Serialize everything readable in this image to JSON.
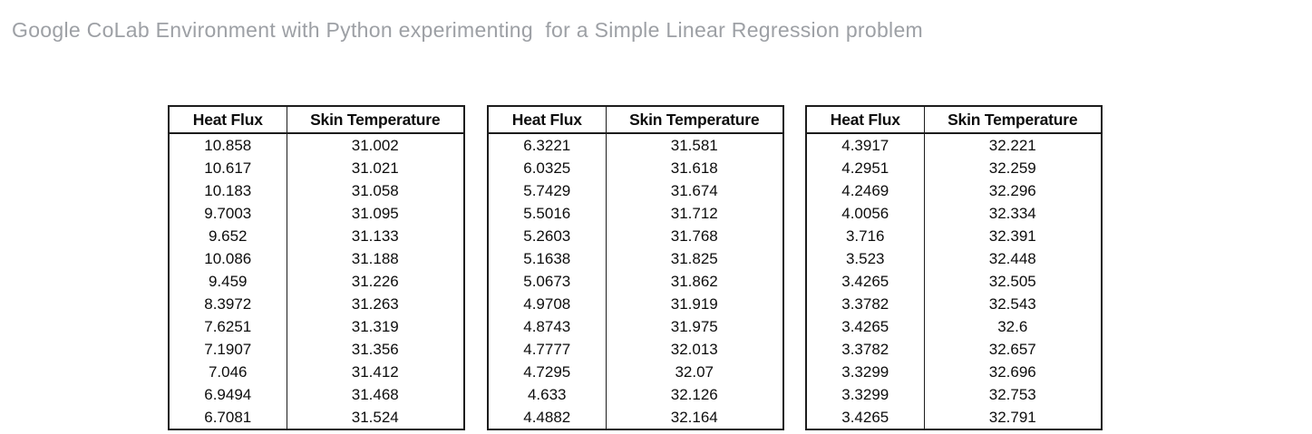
{
  "title": "Google CoLab Environment with Python experimenting  for a Simple Linear Regression problem",
  "colors": {
    "title_text": "#9da0a5",
    "table_border": "#1c1c1c",
    "table_text": "#0d0d0d",
    "background": "#ffffff"
  },
  "tables": [
    {
      "headers": [
        "Heat Flux",
        "Skin Temperature"
      ],
      "rows": [
        [
          "10.858",
          "31.002"
        ],
        [
          "10.617",
          "31.021"
        ],
        [
          "10.183",
          "31.058"
        ],
        [
          "9.7003",
          "31.095"
        ],
        [
          "9.652",
          "31.133"
        ],
        [
          "10.086",
          "31.188"
        ],
        [
          "9.459",
          "31.226"
        ],
        [
          "8.3972",
          "31.263"
        ],
        [
          "7.6251",
          "31.319"
        ],
        [
          "7.1907",
          "31.356"
        ],
        [
          "7.046",
          "31.412"
        ],
        [
          "6.9494",
          "31.468"
        ],
        [
          "6.7081",
          "31.524"
        ]
      ]
    },
    {
      "headers": [
        "Heat Flux",
        "Skin Temperature"
      ],
      "rows": [
        [
          "6.3221",
          "31.581"
        ],
        [
          "6.0325",
          "31.618"
        ],
        [
          "5.7429",
          "31.674"
        ],
        [
          "5.5016",
          "31.712"
        ],
        [
          "5.2603",
          "31.768"
        ],
        [
          "5.1638",
          "31.825"
        ],
        [
          "5.0673",
          "31.862"
        ],
        [
          "4.9708",
          "31.919"
        ],
        [
          "4.8743",
          "31.975"
        ],
        [
          "4.7777",
          "32.013"
        ],
        [
          "4.7295",
          "32.07"
        ],
        [
          "4.633",
          "32.126"
        ],
        [
          "4.4882",
          "32.164"
        ]
      ]
    },
    {
      "headers": [
        "Heat Flux",
        "Skin Temperature"
      ],
      "rows": [
        [
          "4.3917",
          "32.221"
        ],
        [
          "4.2951",
          "32.259"
        ],
        [
          "4.2469",
          "32.296"
        ],
        [
          "4.0056",
          "32.334"
        ],
        [
          "3.716",
          "32.391"
        ],
        [
          "3.523",
          "32.448"
        ],
        [
          "3.4265",
          "32.505"
        ],
        [
          "3.3782",
          "32.543"
        ],
        [
          "3.4265",
          "32.6"
        ],
        [
          "3.3782",
          "32.657"
        ],
        [
          "3.3299",
          "32.696"
        ],
        [
          "3.3299",
          "32.753"
        ],
        [
          "3.4265",
          "32.791"
        ]
      ]
    }
  ]
}
